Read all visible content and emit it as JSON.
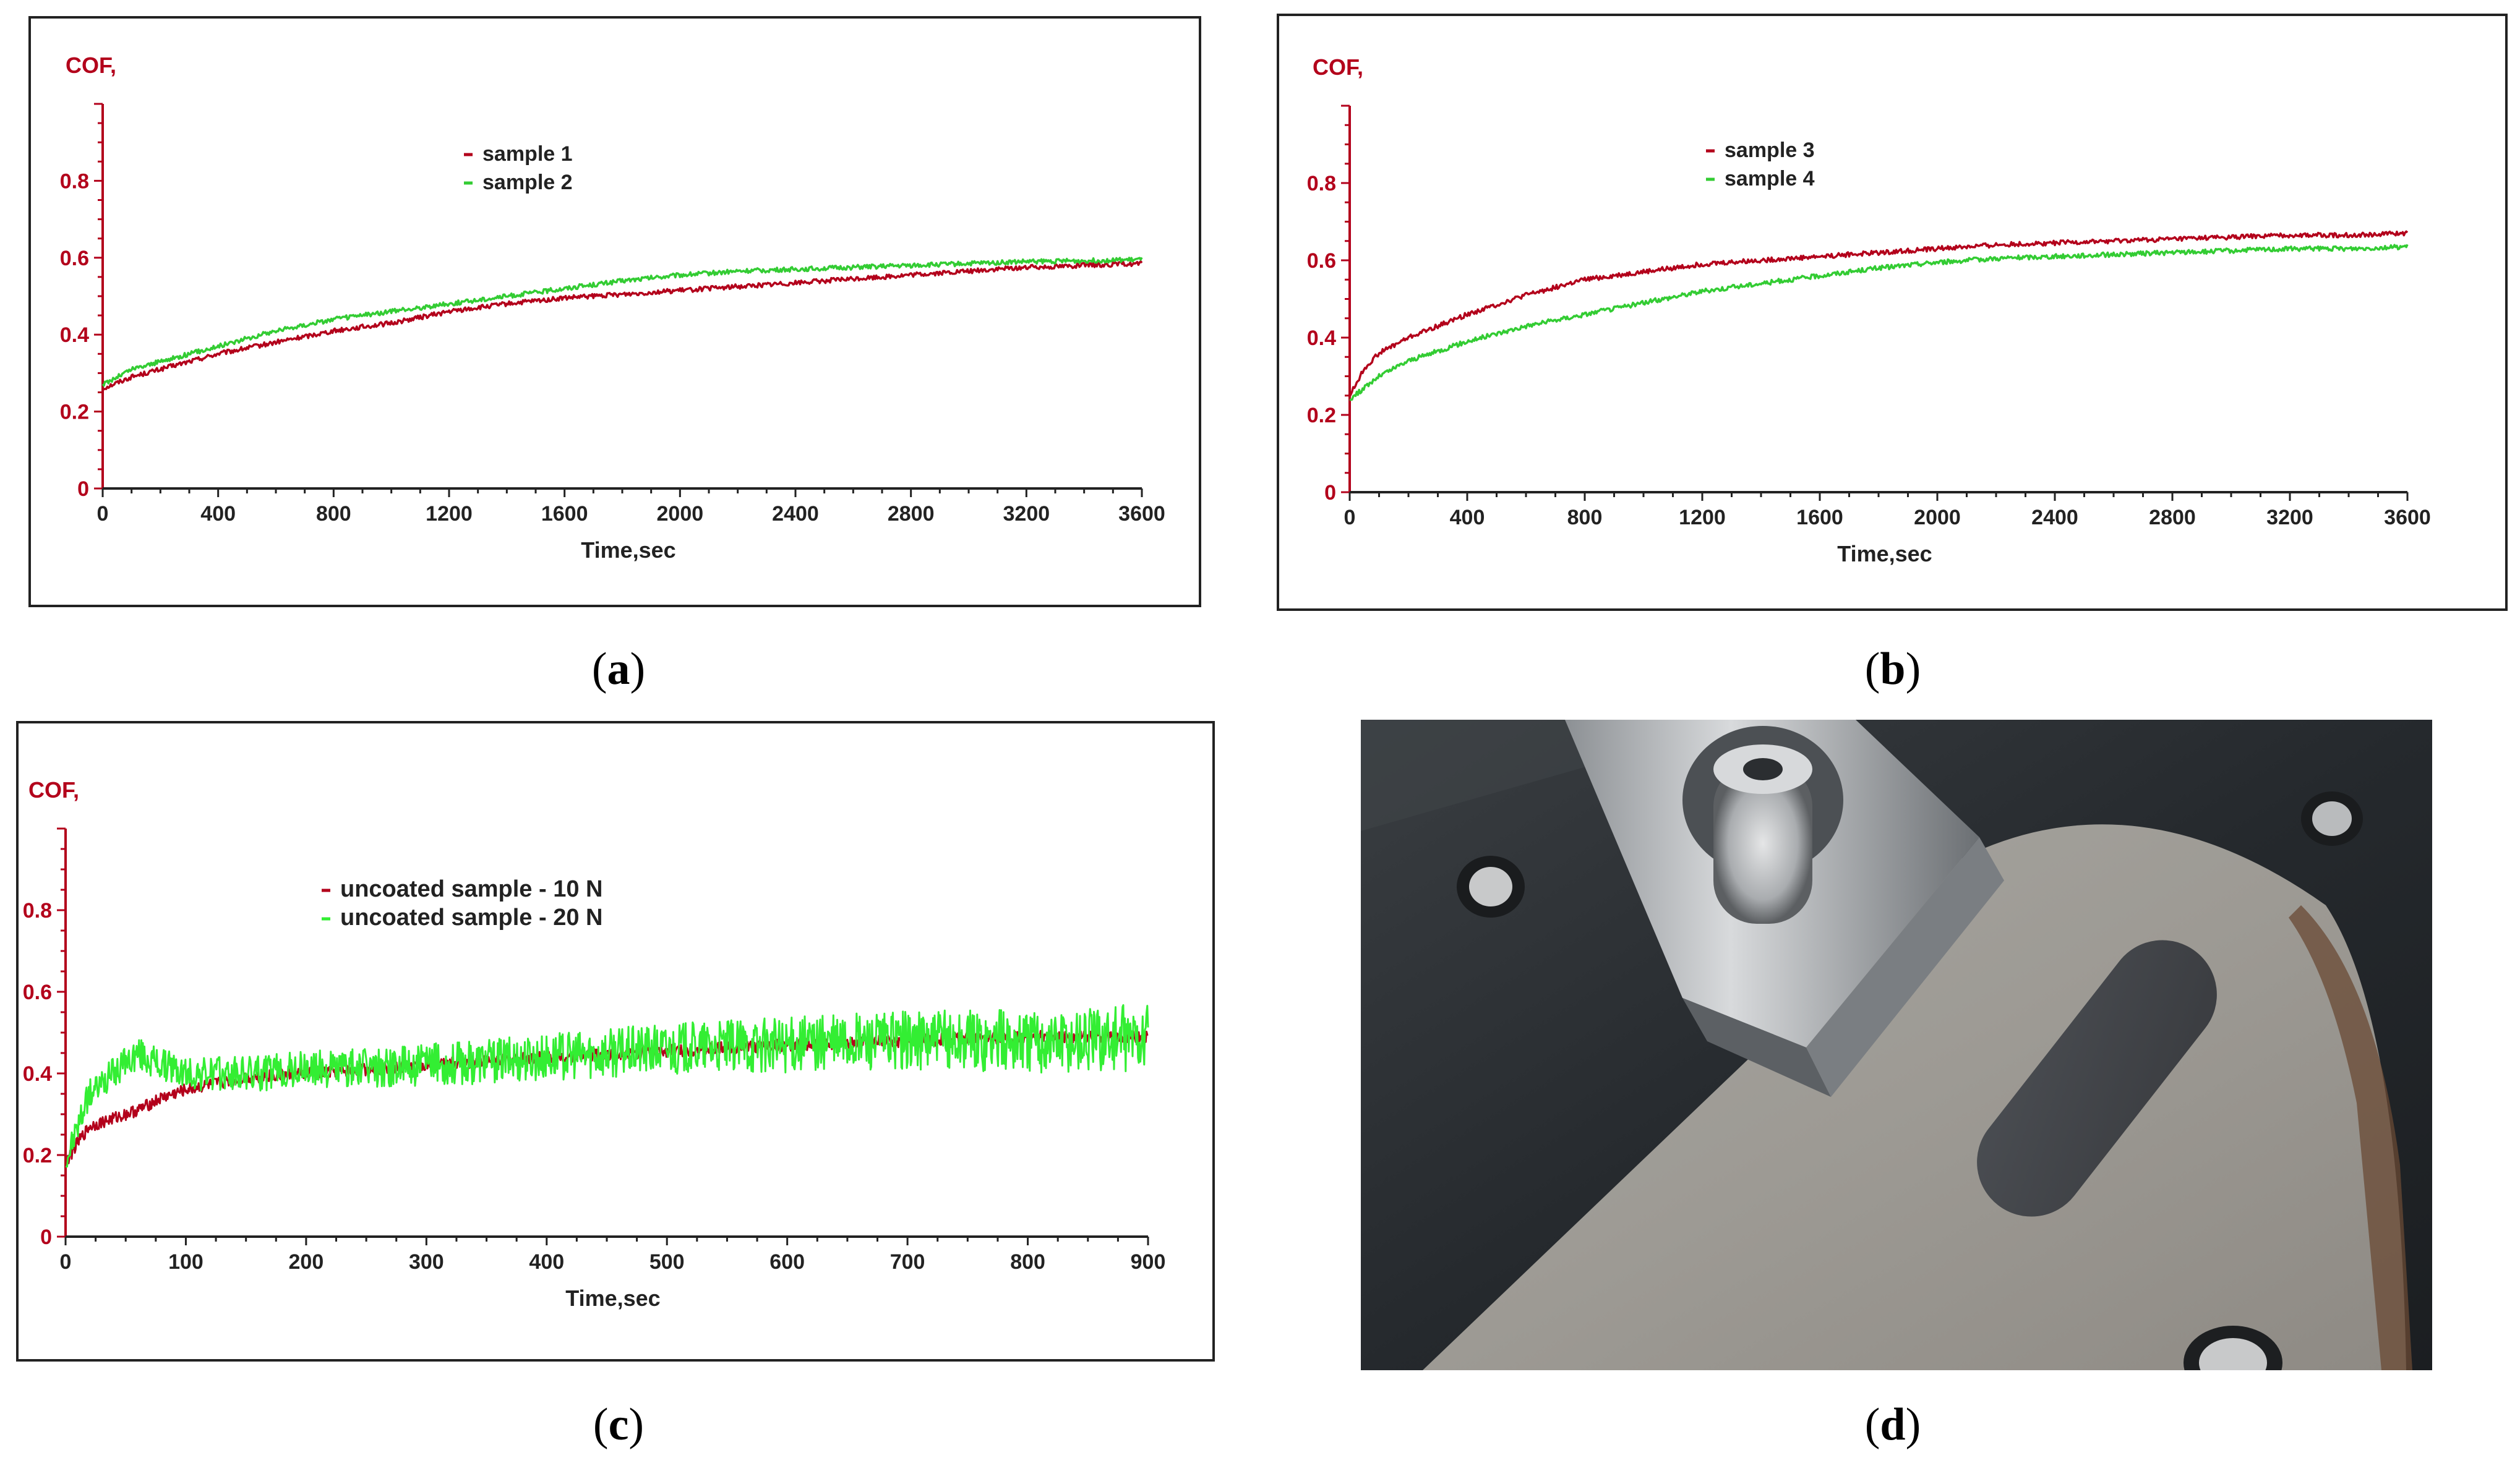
{
  "chart_data": [
    {
      "panel": "a",
      "type": "line",
      "ylabel": "COF,",
      "xlabel": "Time,sec",
      "xlim": [
        0,
        3600
      ],
      "ylim": [
        0,
        1.0
      ],
      "x_ticks": [
        "0",
        "400",
        "800",
        "1200",
        "1600",
        "2000",
        "2400",
        "2800",
        "3200",
        "3600"
      ],
      "y_ticks": [
        "0",
        "0.2",
        "0.4",
        "0.6",
        "0.8"
      ],
      "grid": false,
      "legend_position": "top-center",
      "series": [
        {
          "name": "sample 1",
          "color": "#b3001b",
          "x": [
            0,
            100,
            200,
            400,
            600,
            800,
            1000,
            1200,
            1400,
            1600,
            1800,
            2000,
            2200,
            2400,
            2600,
            2800,
            3000,
            3200,
            3400,
            3600
          ],
          "y": [
            0.26,
            0.29,
            0.31,
            0.35,
            0.38,
            0.41,
            0.43,
            0.46,
            0.48,
            0.495,
            0.505,
            0.515,
            0.525,
            0.535,
            0.545,
            0.555,
            0.565,
            0.575,
            0.58,
            0.585
          ]
        },
        {
          "name": "sample 2",
          "color": "#33cc33",
          "x": [
            0,
            100,
            200,
            400,
            600,
            800,
            1000,
            1200,
            1400,
            1600,
            1800,
            2000,
            2200,
            2400,
            2600,
            2800,
            3000,
            3200,
            3400,
            3600
          ],
          "y": [
            0.27,
            0.31,
            0.33,
            0.37,
            0.41,
            0.44,
            0.46,
            0.48,
            0.5,
            0.52,
            0.54,
            0.555,
            0.565,
            0.57,
            0.575,
            0.58,
            0.585,
            0.59,
            0.592,
            0.595
          ]
        }
      ]
    },
    {
      "panel": "b",
      "type": "line",
      "ylabel": "COF,",
      "xlabel": "Time,sec",
      "xlim": [
        0,
        3600
      ],
      "ylim": [
        0,
        1.0
      ],
      "x_ticks": [
        "0",
        "400",
        "800",
        "1200",
        "1600",
        "2000",
        "2400",
        "2800",
        "3200",
        "3600"
      ],
      "y_ticks": [
        "0",
        "0.2",
        "0.4",
        "0.6",
        "0.8"
      ],
      "grid": false,
      "legend_position": "top-center",
      "series": [
        {
          "name": "sample 3",
          "color": "#b3001b",
          "x": [
            0,
            50,
            100,
            200,
            400,
            600,
            800,
            1000,
            1200,
            1400,
            1600,
            1800,
            2000,
            2200,
            2400,
            2600,
            2800,
            3000,
            3200,
            3400,
            3600
          ],
          "y": [
            0.25,
            0.32,
            0.36,
            0.4,
            0.46,
            0.51,
            0.55,
            0.57,
            0.59,
            0.6,
            0.61,
            0.62,
            0.63,
            0.64,
            0.645,
            0.65,
            0.655,
            0.66,
            0.665,
            0.665,
            0.67
          ]
        },
        {
          "name": "sample 4",
          "color": "#33cc33",
          "x": [
            0,
            50,
            100,
            200,
            400,
            600,
            800,
            1000,
            1200,
            1400,
            1600,
            1800,
            2000,
            2200,
            2400,
            2600,
            2800,
            3000,
            3200,
            3400,
            3600
          ],
          "y": [
            0.24,
            0.27,
            0.3,
            0.34,
            0.39,
            0.43,
            0.46,
            0.49,
            0.52,
            0.54,
            0.56,
            0.58,
            0.595,
            0.605,
            0.61,
            0.615,
            0.62,
            0.625,
            0.63,
            0.63,
            0.635
          ]
        }
      ]
    },
    {
      "panel": "c",
      "type": "line",
      "ylabel": "COF,",
      "xlabel": "Time,sec",
      "xlim": [
        0,
        900
      ],
      "ylim": [
        0,
        1.0
      ],
      "x_ticks": [
        "0",
        "100",
        "200",
        "300",
        "400",
        "500",
        "600",
        "700",
        "800",
        "900"
      ],
      "y_ticks": [
        "0",
        "0.2",
        "0.4",
        "0.6",
        "0.8"
      ],
      "grid": false,
      "legend_position": "top-center",
      "series": [
        {
          "name": "uncoated sample - 10 N",
          "color": "#b3001b",
          "x": [
            0,
            10,
            20,
            40,
            60,
            80,
            100,
            150,
            200,
            300,
            400,
            500,
            600,
            700,
            800,
            900
          ],
          "y": [
            0.18,
            0.23,
            0.27,
            0.29,
            0.31,
            0.34,
            0.36,
            0.39,
            0.4,
            0.42,
            0.44,
            0.455,
            0.47,
            0.48,
            0.49,
            0.49
          ],
          "noise": 0.015
        },
        {
          "name": "uncoated sample - 20 N",
          "color": "#33ee33",
          "x": [
            0,
            10,
            20,
            40,
            60,
            80,
            100,
            150,
            200,
            300,
            400,
            500,
            600,
            700,
            800,
            900
          ],
          "y": [
            0.18,
            0.27,
            0.35,
            0.4,
            0.45,
            0.42,
            0.4,
            0.4,
            0.41,
            0.42,
            0.44,
            0.46,
            0.47,
            0.48,
            0.48,
            0.49
          ],
          "noise": 0.06
        }
      ]
    }
  ],
  "captions": {
    "a": "(a)",
    "b": "(b)",
    "c": "(c)",
    "d": "(d)"
  },
  "photo_d": {
    "description_icon": "photo-tribometer-wear-track"
  }
}
